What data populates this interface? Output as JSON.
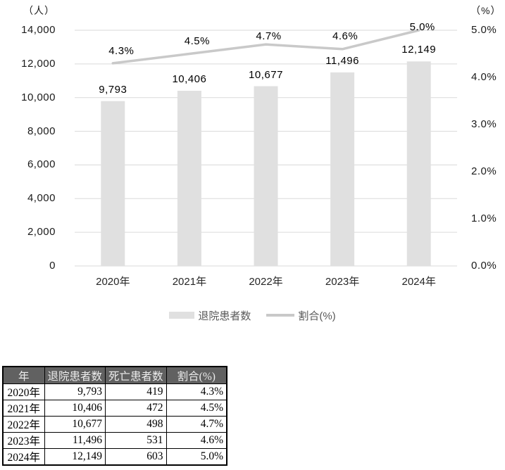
{
  "chart": {
    "legend": {
      "bars_label": "退院患者数",
      "line_label": "割合(%)"
    }
  },
  "chart_data": {
    "type": "bar",
    "subtype": "combo-bar-line",
    "categories": [
      "2020年",
      "2021年",
      "2022年",
      "2023年",
      "2024年"
    ],
    "series": [
      {
        "name": "退院患者数",
        "type": "bar",
        "axis": "left",
        "values": [
          9793,
          10406,
          10677,
          11496,
          12149
        ],
        "data_labels": [
          "9,793",
          "10,406",
          "10,677",
          "11,496",
          "12,149"
        ],
        "color": "#e0e0e0"
      },
      {
        "name": "割合(%)",
        "type": "line",
        "axis": "right",
        "values": [
          4.3,
          4.5,
          4.7,
          4.6,
          5.0
        ],
        "data_labels": [
          "4.3%",
          "4.5%",
          "4.7%",
          "4.6%",
          "5.0%"
        ],
        "color": "#c9c9c9"
      }
    ],
    "left_axis": {
      "unit": "（人）",
      "min": 0,
      "max": 14000,
      "step": 2000,
      "tick_labels": [
        "0",
        "2,000",
        "4,000",
        "6,000",
        "8,000",
        "10,000",
        "12,000",
        "14,000"
      ]
    },
    "right_axis": {
      "unit": "（%）",
      "min": 0,
      "max": 5,
      "step": 1,
      "tick_labels": [
        "0.0%",
        "1.0%",
        "2.0%",
        "3.0%",
        "4.0%",
        "5.0%"
      ]
    },
    "grid": true,
    "legend_position": "bottom",
    "title": ""
  },
  "table": {
    "columns": [
      "年",
      "退院患者数",
      "死亡患者数",
      "割合(%)"
    ],
    "rows": [
      [
        "2020年",
        "9,793",
        "419",
        "4.3%"
      ],
      [
        "2021年",
        "10,406",
        "472",
        "4.5%"
      ],
      [
        "2022年",
        "10,677",
        "498",
        "4.7%"
      ],
      [
        "2023年",
        "11,496",
        "531",
        "4.6%"
      ],
      [
        "2024年",
        "12,149",
        "603",
        "5.0%"
      ]
    ]
  },
  "colors": {
    "bar": "#e0e0e0",
    "line": "#c9c9c9",
    "grid": "#dadada",
    "axis_text": "#1a1a1a",
    "legend_text": "#595959",
    "table_header_bg": "#616161",
    "table_header_text": "#ededed",
    "table_border": "#000000"
  }
}
